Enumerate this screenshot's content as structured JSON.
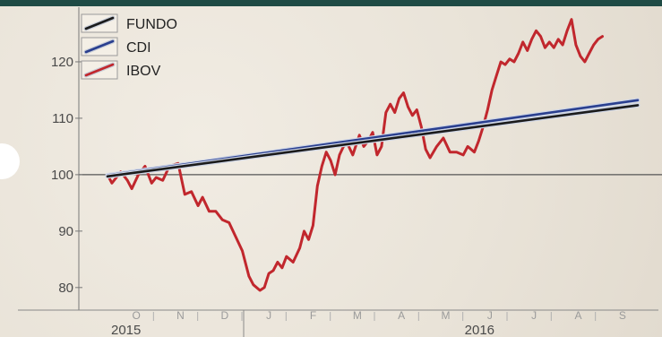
{
  "colors": {
    "fundo": "#1b1b1b",
    "cdi": "#2a3f8f",
    "ibov": "#c1272d",
    "topbar": "#1f4b45"
  },
  "chart_data": {
    "type": "line",
    "title": "",
    "xlabel": "",
    "ylabel": "",
    "ylim": [
      76,
      130
    ],
    "yticks": [
      80,
      90,
      100,
      110,
      120
    ],
    "reference_line": 100,
    "grid": false,
    "legend_position": "top-left",
    "x_months": [
      "O",
      "N",
      "D",
      "J",
      "F",
      "M",
      "A",
      "M",
      "J",
      "J",
      "A",
      "S"
    ],
    "x_years": [
      {
        "label": "2015",
        "month_index": 0
      },
      {
        "label": "2016",
        "month_index": 8
      }
    ],
    "x_range_months": [
      0,
      12
    ],
    "series": [
      {
        "name": "FUNDO",
        "points": [
          [
            0,
            99.7
          ],
          [
            12,
            112.3
          ]
        ]
      },
      {
        "name": "CDI",
        "points": [
          [
            0,
            99.9
          ],
          [
            12,
            113.2
          ]
        ]
      },
      {
        "name": "IBOV",
        "points": [
          [
            0.0,
            100
          ],
          [
            0.1,
            98.5
          ],
          [
            0.2,
            99.5
          ],
          [
            0.3,
            100.5
          ],
          [
            0.45,
            99
          ],
          [
            0.55,
            97.5
          ],
          [
            0.7,
            100
          ],
          [
            0.85,
            101.5
          ],
          [
            1.0,
            98.5
          ],
          [
            1.1,
            99.5
          ],
          [
            1.25,
            99
          ],
          [
            1.4,
            101.5
          ],
          [
            1.6,
            102
          ],
          [
            1.75,
            96.5
          ],
          [
            1.9,
            97
          ],
          [
            2.05,
            94.5
          ],
          [
            2.15,
            96
          ],
          [
            2.3,
            93.5
          ],
          [
            2.45,
            93.5
          ],
          [
            2.6,
            92
          ],
          [
            2.75,
            91.5
          ],
          [
            2.9,
            89
          ],
          [
            3.05,
            86.5
          ],
          [
            3.2,
            82
          ],
          [
            3.3,
            80.5
          ],
          [
            3.45,
            79.5
          ],
          [
            3.55,
            80
          ],
          [
            3.65,
            82.5
          ],
          [
            3.75,
            83
          ],
          [
            3.85,
            84.5
          ],
          [
            3.95,
            83.5
          ],
          [
            4.05,
            85.5
          ],
          [
            4.2,
            84.5
          ],
          [
            4.35,
            87
          ],
          [
            4.45,
            90
          ],
          [
            4.55,
            88.5
          ],
          [
            4.65,
            91
          ],
          [
            4.75,
            98
          ],
          [
            4.85,
            101.5
          ],
          [
            4.95,
            104
          ],
          [
            5.05,
            102.5
          ],
          [
            5.15,
            100
          ],
          [
            5.25,
            103.5
          ],
          [
            5.4,
            106
          ],
          [
            5.55,
            103.5
          ],
          [
            5.7,
            107
          ],
          [
            5.8,
            105
          ],
          [
            5.9,
            106
          ],
          [
            6.0,
            107.5
          ],
          [
            6.1,
            103.5
          ],
          [
            6.2,
            105
          ],
          [
            6.3,
            111
          ],
          [
            6.4,
            112.5
          ],
          [
            6.5,
            111
          ],
          [
            6.6,
            113.5
          ],
          [
            6.7,
            114.5
          ],
          [
            6.8,
            112
          ],
          [
            6.9,
            110.5
          ],
          [
            7.0,
            111.5
          ],
          [
            7.1,
            108.5
          ],
          [
            7.2,
            104.5
          ],
          [
            7.3,
            103
          ],
          [
            7.45,
            105
          ],
          [
            7.6,
            106.5
          ],
          [
            7.75,
            104
          ],
          [
            7.9,
            104
          ],
          [
            8.05,
            103.5
          ],
          [
            8.15,
            105
          ],
          [
            8.3,
            104
          ],
          [
            8.4,
            106
          ],
          [
            8.5,
            108.5
          ],
          [
            8.6,
            111.5
          ],
          [
            8.7,
            115
          ],
          [
            8.8,
            117.5
          ],
          [
            8.9,
            120
          ],
          [
            9.0,
            119.5
          ],
          [
            9.1,
            120.5
          ],
          [
            9.2,
            120
          ],
          [
            9.3,
            121.5
          ],
          [
            9.4,
            123.5
          ],
          [
            9.5,
            122
          ],
          [
            9.6,
            124
          ],
          [
            9.7,
            125.5
          ],
          [
            9.8,
            124.5
          ],
          [
            9.9,
            122.5
          ],
          [
            10.0,
            123.5
          ],
          [
            10.1,
            122.5
          ],
          [
            10.2,
            124
          ],
          [
            10.3,
            123
          ],
          [
            10.4,
            125.5
          ],
          [
            10.5,
            127.5
          ],
          [
            10.6,
            123
          ],
          [
            10.7,
            121
          ],
          [
            10.8,
            120
          ],
          [
            10.9,
            121.5
          ],
          [
            11.0,
            123
          ],
          [
            11.1,
            124
          ],
          [
            11.2,
            124.5
          ]
        ]
      }
    ]
  }
}
